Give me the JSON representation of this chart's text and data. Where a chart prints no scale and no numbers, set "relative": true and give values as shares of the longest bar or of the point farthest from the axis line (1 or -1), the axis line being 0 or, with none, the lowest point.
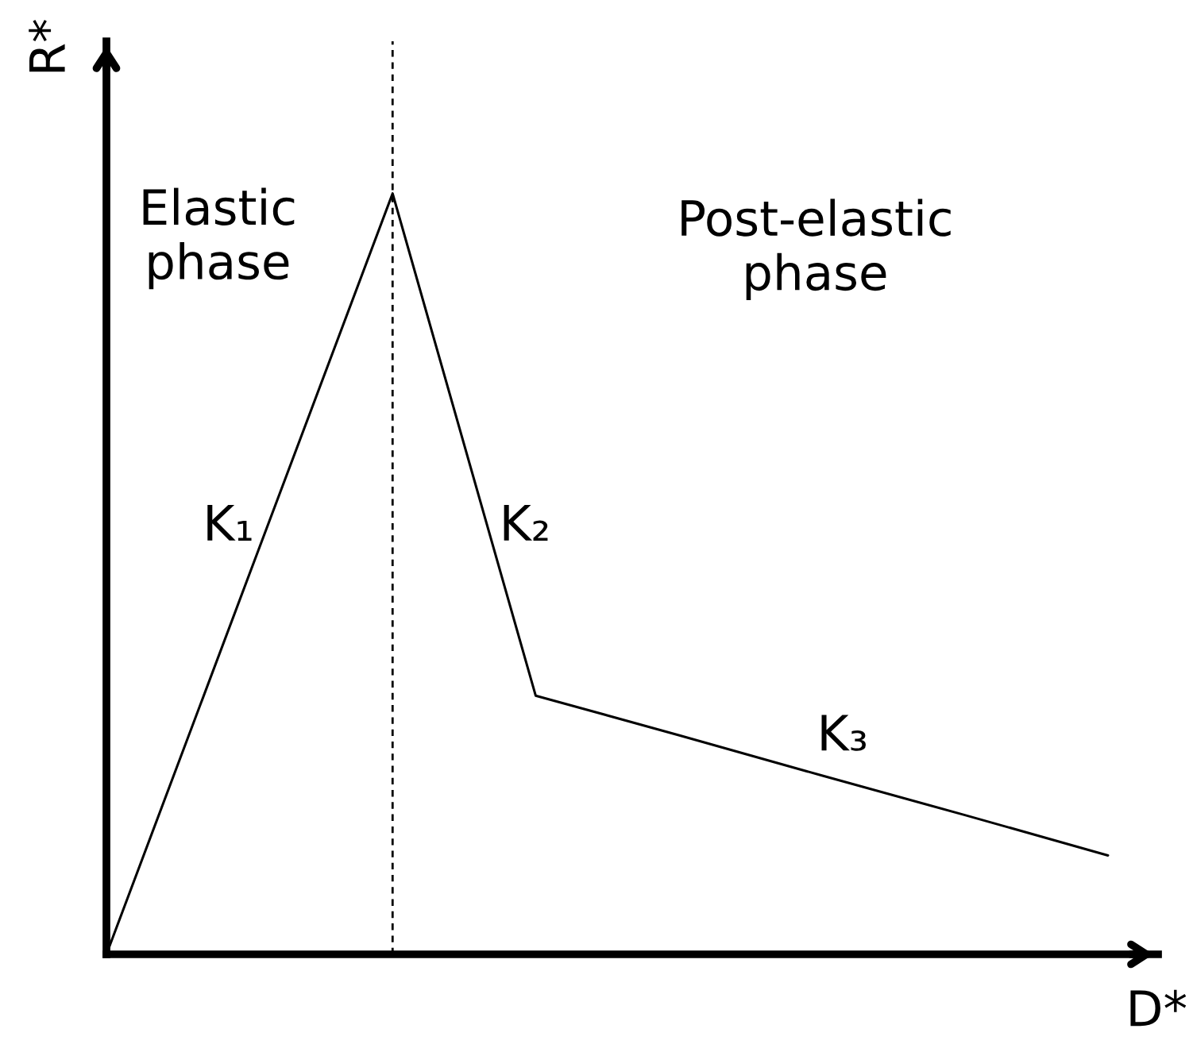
{
  "chart_data": {
    "type": "line",
    "relative": true,
    "xlabel": "D*",
    "ylabel": "R*",
    "categories": [
      null,
      null,
      null,
      null,
      null,
      null,
      null,
      null
    ],
    "series": [
      {
        "color": "#000000",
        "values": [
          0,
          0.5,
          1,
          0.34,
          0.288,
          0.235,
          0.183,
          0.13
        ]
      }
    ],
    "annotations": [
      "Elastic\nphase",
      "Post-elastic\nphase",
      "K₁",
      "K₂",
      "K₃"
    ]
  }
}
